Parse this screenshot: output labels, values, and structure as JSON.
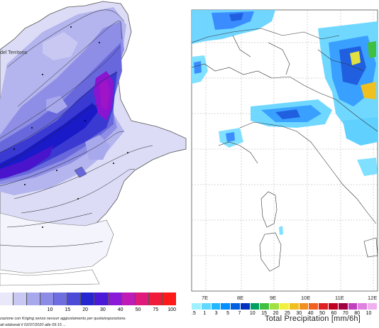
{
  "left_map": {
    "region_label": "del Territorio",
    "legend": {
      "colors": [
        "#e8e8f8",
        "#c8c8f2",
        "#a8a8ec",
        "#8c8ce6",
        "#6e6ee0",
        "#4b4bd8",
        "#2626d0",
        "#4a1ad8",
        "#8a1ad8",
        "#c01ab8",
        "#e01a7a",
        "#f01a3a",
        "#ff1a1a"
      ],
      "tick_labels": [
        "",
        "",
        "10",
        "15",
        "20",
        "30",
        "40",
        "50",
        "75",
        "100"
      ]
    },
    "caption_1": "zazione con Kriging senza nessun aggiustamento per quota/esposizione.",
    "caption_2": "ati elaborati il 02/07/2020 alle 09:15 ..."
  },
  "right_map": {
    "lon_labels": [
      "7E",
      "8E",
      "9E",
      "10E",
      "11E",
      "12E"
    ],
    "legend": {
      "colors": [
        "#a0f0ff",
        "#60d8ff",
        "#20b8ff",
        "#0090ff",
        "#0060e0",
        "#0030c0",
        "#00a060",
        "#40c040",
        "#a0e040",
        "#f0f040",
        "#f0c020",
        "#f09020",
        "#f06020",
        "#e02020",
        "#c00020",
        "#a00040",
        "#c040c0",
        "#e080e0",
        "#f0b0f0"
      ],
      "tick_labels": [
        ".5",
        "1",
        "3",
        "5",
        "7",
        "10",
        "15",
        "20",
        "25",
        "30",
        "40",
        "50",
        "60",
        "70",
        "80",
        "10"
      ]
    },
    "title": "Total Precipitation [mm/6h]"
  }
}
